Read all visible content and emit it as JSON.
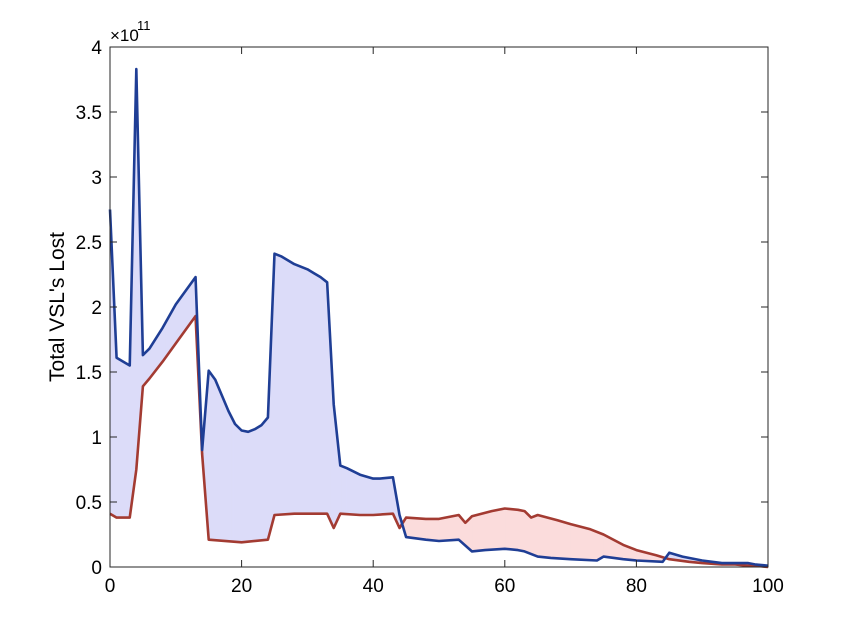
{
  "chart_data": {
    "type": "area",
    "title": "",
    "xlabel": "",
    "ylabel": "Total VSL's Lost",
    "xlim": [
      0,
      100
    ],
    "ylim": [
      0,
      4
    ],
    "x_ticks": [
      0,
      20,
      40,
      60,
      80,
      100
    ],
    "y_ticks": [
      0,
      0.5,
      1,
      1.5,
      2,
      2.5,
      3,
      3.5,
      4
    ],
    "y_tick_labels": [
      "0",
      "0.5",
      "1",
      "1.5",
      "2",
      "2.5",
      "3",
      "3.5",
      "4"
    ],
    "x_tick_labels": [
      "0",
      "20",
      "40",
      "60",
      "80",
      "100"
    ],
    "y_multiplier_base": "×10",
    "y_multiplier_exp": "11",
    "grid": false,
    "series": [
      {
        "color": "#1f3e95",
        "fill": "#dcdcf9",
        "x": [
          0,
          1,
          3,
          4,
          5,
          6,
          8,
          10,
          13,
          14,
          15,
          16,
          17,
          18,
          19,
          20,
          21,
          22,
          23,
          24,
          25,
          26,
          28,
          30,
          31,
          32,
          33,
          34,
          35,
          36,
          38,
          40,
          41,
          43,
          44,
          45,
          48,
          50,
          53,
          55,
          57,
          60,
          62,
          63,
          65,
          67,
          70,
          74,
          75,
          78,
          80,
          84,
          85,
          87,
          90,
          93,
          95,
          97,
          98,
          100
        ],
        "values": [
          2.75,
          1.61,
          1.55,
          3.83,
          1.63,
          1.68,
          1.84,
          2.02,
          2.23,
          0.9,
          1.51,
          1.44,
          1.32,
          1.2,
          1.1,
          1.05,
          1.04,
          1.06,
          1.09,
          1.15,
          2.41,
          2.39,
          2.33,
          2.29,
          2.26,
          2.23,
          2.19,
          1.25,
          0.78,
          0.76,
          0.71,
          0.68,
          0.68,
          0.69,
          0.4,
          0.23,
          0.21,
          0.2,
          0.21,
          0.12,
          0.13,
          0.14,
          0.13,
          0.12,
          0.08,
          0.07,
          0.06,
          0.05,
          0.08,
          0.06,
          0.05,
          0.04,
          0.11,
          0.08,
          0.05,
          0.03,
          0.03,
          0.03,
          0.02,
          0.01
        ]
      },
      {
        "color": "#a33b32",
        "fill": "#fbdcdc",
        "x": [
          0,
          1,
          3,
          4,
          5,
          6,
          8,
          10,
          13,
          14,
          15,
          20,
          24,
          25,
          28,
          30,
          33,
          34,
          35,
          38,
          40,
          43,
          44,
          45,
          48,
          50,
          53,
          54,
          55,
          58,
          60,
          62,
          63,
          64,
          65,
          68,
          70,
          73,
          75,
          78,
          80,
          83,
          85,
          88,
          90,
          93,
          95,
          97,
          98,
          100
        ],
        "values": [
          0.41,
          0.38,
          0.38,
          0.75,
          1.39,
          1.45,
          1.58,
          1.72,
          1.93,
          0.87,
          0.21,
          0.19,
          0.21,
          0.4,
          0.41,
          0.41,
          0.41,
          0.3,
          0.41,
          0.4,
          0.4,
          0.41,
          0.3,
          0.38,
          0.37,
          0.37,
          0.4,
          0.34,
          0.39,
          0.43,
          0.45,
          0.44,
          0.43,
          0.38,
          0.4,
          0.36,
          0.33,
          0.29,
          0.25,
          0.17,
          0.13,
          0.09,
          0.06,
          0.04,
          0.03,
          0.02,
          0.02,
          0.01,
          0.01,
          0.0
        ]
      }
    ]
  }
}
